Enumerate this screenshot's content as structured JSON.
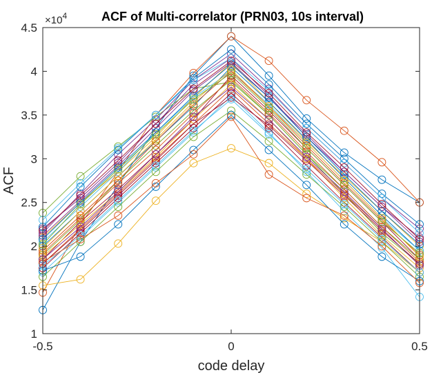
{
  "chart_data": {
    "type": "line",
    "title": "ACF of Multi-correlator (PRN03, 10s interval)",
    "xlabel": "code delay",
    "ylabel": "ACF",
    "y_exponent_label": "×10",
    "y_exponent_power": "4",
    "xlim": [
      -0.5,
      0.5
    ],
    "ylim": [
      1,
      4.5
    ],
    "x_ticks": [
      "-0.5",
      "0",
      "0.5"
    ],
    "y_ticks": [
      "1",
      "1.5",
      "2",
      "2.5",
      "3",
      "3.5",
      "4",
      "4.5"
    ],
    "grid": false,
    "marker": "circle",
    "x": [
      -0.5,
      -0.4,
      -0.3,
      -0.2,
      -0.1,
      0,
      0.1,
      0.2,
      0.3,
      0.4,
      0.5
    ],
    "series": [
      {
        "color": "#0072BD",
        "values": [
          1.27,
          2.05,
          2.7,
          3.35,
          3.95,
          4.4,
          3.95,
          3.46,
          3.07,
          2.76,
          2.5
        ]
      },
      {
        "color": "#D95319",
        "values": [
          1.47,
          2.25,
          2.85,
          3.5,
          3.98,
          4.4,
          4.12,
          3.67,
          3.32,
          2.96,
          2.5
        ]
      },
      {
        "color": "#EDB120",
        "values": [
          2.1,
          2.5,
          2.85,
          3.25,
          3.7,
          4.1,
          3.65,
          3.2,
          2.8,
          2.4,
          2.0
        ]
      },
      {
        "color": "#7E2F8E",
        "values": [
          2.2,
          2.55,
          2.95,
          3.4,
          3.85,
          4.15,
          3.72,
          3.25,
          2.85,
          2.45,
          2.05
        ]
      },
      {
        "color": "#77AC30",
        "values": [
          2.38,
          2.8,
          3.14,
          3.48,
          3.8,
          3.88,
          3.5,
          3.05,
          2.6,
          2.15,
          1.8
        ]
      },
      {
        "color": "#4DBEEE",
        "values": [
          1.7,
          2.1,
          2.5,
          2.9,
          3.3,
          3.72,
          3.3,
          2.85,
          2.4,
          1.98,
          1.42
        ]
      },
      {
        "color": "#A2142F",
        "values": [
          1.85,
          2.28,
          2.65,
          3.05,
          3.45,
          3.95,
          3.55,
          3.12,
          2.7,
          2.28,
          1.85
        ]
      },
      {
        "color": "#0072BD",
        "values": [
          2.0,
          2.4,
          2.8,
          3.2,
          3.6,
          4.05,
          3.65,
          3.22,
          2.78,
          2.35,
          1.95
        ]
      },
      {
        "color": "#D95319",
        "values": [
          1.8,
          2.2,
          2.6,
          3.0,
          3.4,
          3.8,
          3.4,
          3.0,
          2.6,
          2.2,
          1.78
        ]
      },
      {
        "color": "#EDB120",
        "values": [
          1.55,
          1.62,
          2.03,
          2.52,
          2.95,
          3.12,
          2.95,
          2.6,
          2.32,
          2.05,
          1.7
        ]
      },
      {
        "color": "#7E2F8E",
        "values": [
          2.15,
          2.6,
          3.05,
          3.45,
          3.9,
          4.2,
          3.8,
          3.35,
          2.95,
          2.55,
          2.2
        ]
      },
      {
        "color": "#77AC30",
        "values": [
          1.9,
          2.3,
          2.75,
          3.15,
          3.55,
          3.9,
          3.5,
          3.05,
          2.65,
          2.22,
          1.85
        ]
      },
      {
        "color": "#4DBEEE",
        "values": [
          2.05,
          2.45,
          2.85,
          3.3,
          3.7,
          4.0,
          3.62,
          3.18,
          2.75,
          2.32,
          1.95
        ]
      },
      {
        "color": "#A2142F",
        "values": [
          1.75,
          2.15,
          2.55,
          2.95,
          3.35,
          3.75,
          3.35,
          2.92,
          2.5,
          2.1,
          1.7
        ]
      },
      {
        "color": "#0072BD",
        "values": [
          2.22,
          2.68,
          3.1,
          3.5,
          3.92,
          4.25,
          3.85,
          3.4,
          3.0,
          2.6,
          2.25
        ]
      },
      {
        "color": "#D95319",
        "values": [
          1.95,
          2.35,
          2.75,
          3.2,
          3.62,
          4.0,
          3.6,
          3.15,
          2.72,
          2.3,
          1.9
        ]
      },
      {
        "color": "#EDB120",
        "values": [
          1.88,
          2.25,
          2.62,
          3.02,
          3.45,
          3.85,
          3.45,
          3.0,
          2.55,
          2.12,
          1.75
        ]
      },
      {
        "color": "#7E2F8E",
        "values": [
          2.12,
          2.52,
          2.92,
          3.35,
          3.78,
          4.1,
          3.7,
          3.28,
          2.85,
          2.45,
          2.1
        ]
      },
      {
        "color": "#77AC30",
        "values": [
          1.65,
          2.05,
          2.45,
          2.85,
          3.25,
          3.55,
          3.2,
          2.82,
          2.45,
          2.05,
          1.65
        ]
      },
      {
        "color": "#4DBEEE",
        "values": [
          2.3,
          2.72,
          3.12,
          3.5,
          3.9,
          4.15,
          3.78,
          3.35,
          2.95,
          2.55,
          2.15
        ]
      },
      {
        "color": "#A2142F",
        "values": [
          1.8,
          2.18,
          2.58,
          2.98,
          3.4,
          3.7,
          3.38,
          2.98,
          2.58,
          2.18,
          1.8
        ]
      },
      {
        "color": "#0072BD",
        "values": [
          2.08,
          2.5,
          2.9,
          3.3,
          3.72,
          4.08,
          3.7,
          3.25,
          2.82,
          2.4,
          2.02
        ]
      },
      {
        "color": "#D95319",
        "values": [
          1.92,
          2.32,
          2.72,
          3.1,
          3.52,
          3.92,
          3.52,
          3.08,
          2.65,
          2.22,
          1.82
        ]
      },
      {
        "color": "#EDB120",
        "values": [
          1.98,
          2.4,
          2.8,
          3.22,
          3.65,
          4.02,
          3.6,
          3.18,
          2.75,
          2.32,
          1.88
        ]
      },
      {
        "color": "#7E2F8E",
        "values": [
          1.85,
          2.22,
          2.62,
          3.05,
          3.48,
          3.82,
          3.45,
          3.02,
          2.62,
          2.2,
          1.78
        ]
      },
      {
        "color": "#77AC30",
        "values": [
          2.02,
          2.48,
          2.88,
          3.28,
          3.68,
          3.98,
          3.58,
          3.12,
          2.7,
          2.28,
          1.92
        ]
      },
      {
        "color": "#4DBEEE",
        "values": [
          1.78,
          2.12,
          2.52,
          2.92,
          3.32,
          3.68,
          3.28,
          2.88,
          2.48,
          2.08,
          1.7
        ]
      },
      {
        "color": "#A2142F",
        "values": [
          2.18,
          2.58,
          2.98,
          3.4,
          3.8,
          4.12,
          3.75,
          3.3,
          2.9,
          2.48,
          2.08
        ]
      },
      {
        "color": "#0072BD",
        "values": [
          1.72,
          1.88,
          2.25,
          2.68,
          3.1,
          3.5,
          3.1,
          2.7,
          2.25,
          1.88,
          1.6
        ]
      },
      {
        "color": "#D95319",
        "values": [
          1.82,
          2.08,
          2.35,
          2.72,
          3.05,
          3.48,
          2.82,
          2.55,
          2.35,
          2.0,
          1.58
        ]
      }
    ]
  }
}
